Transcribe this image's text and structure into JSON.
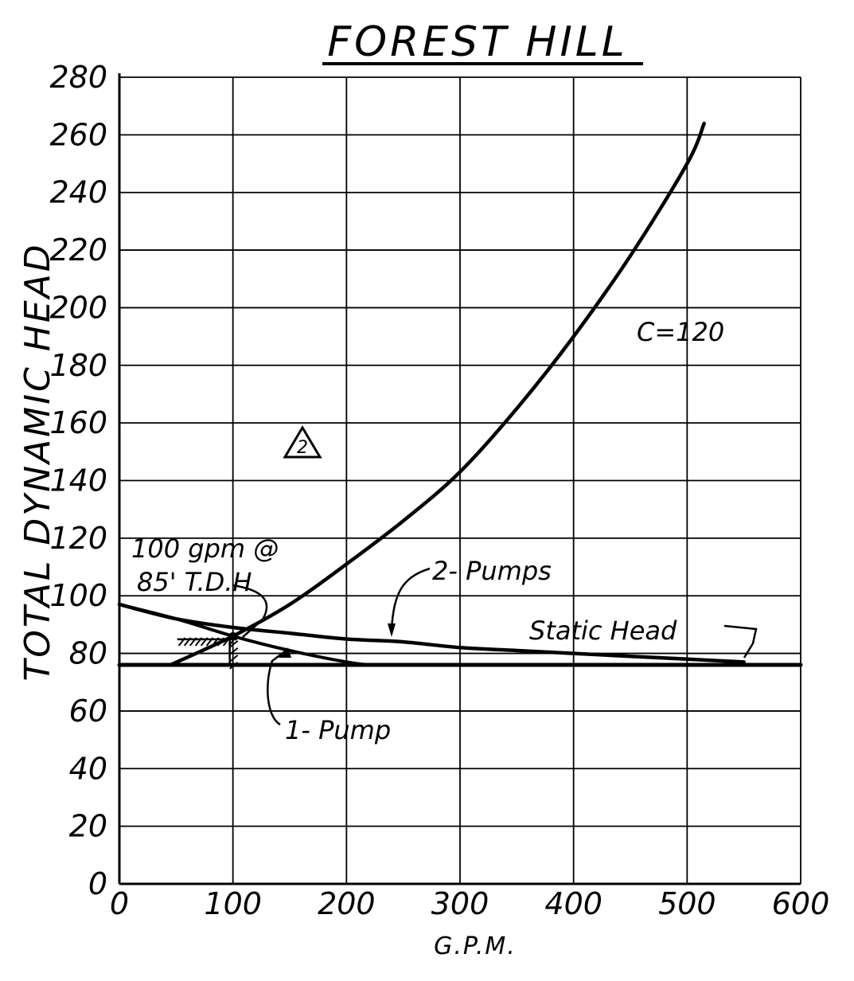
{
  "chart_data": {
    "type": "line",
    "title": "FOREST HILL",
    "xlabel": "G.P.M.",
    "ylabel": "TOTAL DYNAMIC HEAD",
    "xlim": [
      0,
      600
    ],
    "ylim": [
      0,
      280
    ],
    "xticks": [
      0,
      100,
      200,
      300,
      400,
      500,
      600
    ],
    "yticks": [
      0,
      20,
      40,
      60,
      80,
      100,
      120,
      140,
      160,
      180,
      200,
      220,
      240,
      260,
      280
    ],
    "grid": true,
    "series": [
      {
        "name": "C=120",
        "x": [
          45,
          100,
          150,
          200,
          250,
          300,
          350,
          400,
          450,
          500,
          515
        ],
        "y": [
          76,
          86,
          97,
          111,
          126,
          143,
          165,
          190,
          218,
          250,
          264
        ]
      },
      {
        "name": "2- Pumps",
        "x": [
          0,
          50,
          100,
          150,
          200,
          250,
          300,
          350,
          400,
          450,
          500,
          550
        ],
        "y": [
          97,
          92,
          89,
          87,
          85,
          84,
          82,
          81,
          80,
          79,
          78,
          77
        ]
      },
      {
        "name": "1-Pump",
        "x": [
          0,
          50,
          100,
          150,
          200,
          220
        ],
        "y": [
          97,
          92,
          86,
          81,
          77,
          76
        ]
      },
      {
        "name": "Static Head",
        "x": [
          0,
          600
        ],
        "y": [
          76,
          76
        ]
      }
    ],
    "annotations": [
      {
        "text": "100 gpm @"
      },
      {
        "text": "85' T.D.H"
      },
      {
        "text": "C=120"
      },
      {
        "text": "2- Pumps"
      },
      {
        "text": "Static Head"
      },
      {
        "text": "1- Pump"
      },
      {
        "text": "2"
      }
    ]
  }
}
